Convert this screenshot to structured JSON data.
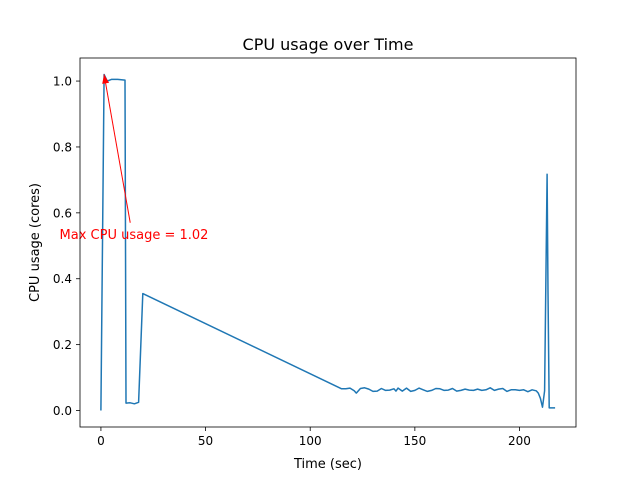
{
  "chart_data": {
    "type": "line",
    "title": "CPU usage over Time",
    "xlabel": "Time (sec)",
    "ylabel": "CPU usage (cores)",
    "xlim": [
      -10,
      227
    ],
    "ylim": [
      -0.05,
      1.07
    ],
    "xticks": [
      0,
      50,
      100,
      150,
      200
    ],
    "yticks": [
      0.0,
      0.2,
      0.4,
      0.6,
      0.8,
      1.0
    ],
    "xtick_labels": [
      "0",
      "50",
      "100",
      "150",
      "200"
    ],
    "ytick_labels": [
      "0.0",
      "0.2",
      "0.4",
      "0.6",
      "0.8",
      "1.0"
    ],
    "grid": false,
    "line_color": "#1f77b4",
    "series": [
      {
        "x": [
          0,
          1.5,
          3,
          5,
          8,
          11.5,
          12,
          14,
          16,
          18,
          20,
          115,
          117,
          119,
          121,
          122,
          124,
          126,
          128,
          130,
          132,
          134,
          136,
          138,
          140,
          141,
          142,
          144,
          146,
          148,
          150,
          152,
          154,
          156,
          158,
          160,
          162,
          164,
          166,
          168,
          170,
          172,
          174,
          176,
          178,
          180,
          182,
          184,
          186,
          188,
          190,
          192,
          194,
          196,
          198,
          200,
          202,
          204,
          206,
          208,
          209,
          210,
          211,
          212,
          213.2,
          213.6,
          214.2,
          215,
          216,
          217
        ],
        "y": [
          0.0,
          1.02,
          1.0,
          1.005,
          1.005,
          1.003,
          0.0225,
          0.0235,
          0.0205,
          0.025,
          0.355,
          0.066,
          0.066,
          0.068,
          0.06,
          0.053,
          0.067,
          0.069,
          0.065,
          0.058,
          0.059,
          0.067,
          0.061,
          0.062,
          0.066,
          0.059,
          0.068,
          0.059,
          0.068,
          0.058,
          0.061,
          0.068,
          0.063,
          0.058,
          0.061,
          0.067,
          0.066,
          0.061,
          0.062,
          0.067,
          0.059,
          0.061,
          0.065,
          0.062,
          0.061,
          0.065,
          0.061,
          0.063,
          0.069,
          0.061,
          0.065,
          0.067,
          0.058,
          0.063,
          0.063,
          0.061,
          0.063,
          0.057,
          0.063,
          0.06,
          0.053,
          0.037,
          0.01,
          0.06,
          0.717,
          0.36,
          0.008,
          0.008,
          0.008,
          0.008
        ]
      }
    ],
    "annotation": {
      "text": "Max CPU usage = 1.02",
      "color": "#ff0000",
      "point": [
        1.5,
        1.02
      ],
      "text_anchor_data": [
        14,
        0.57
      ]
    }
  }
}
